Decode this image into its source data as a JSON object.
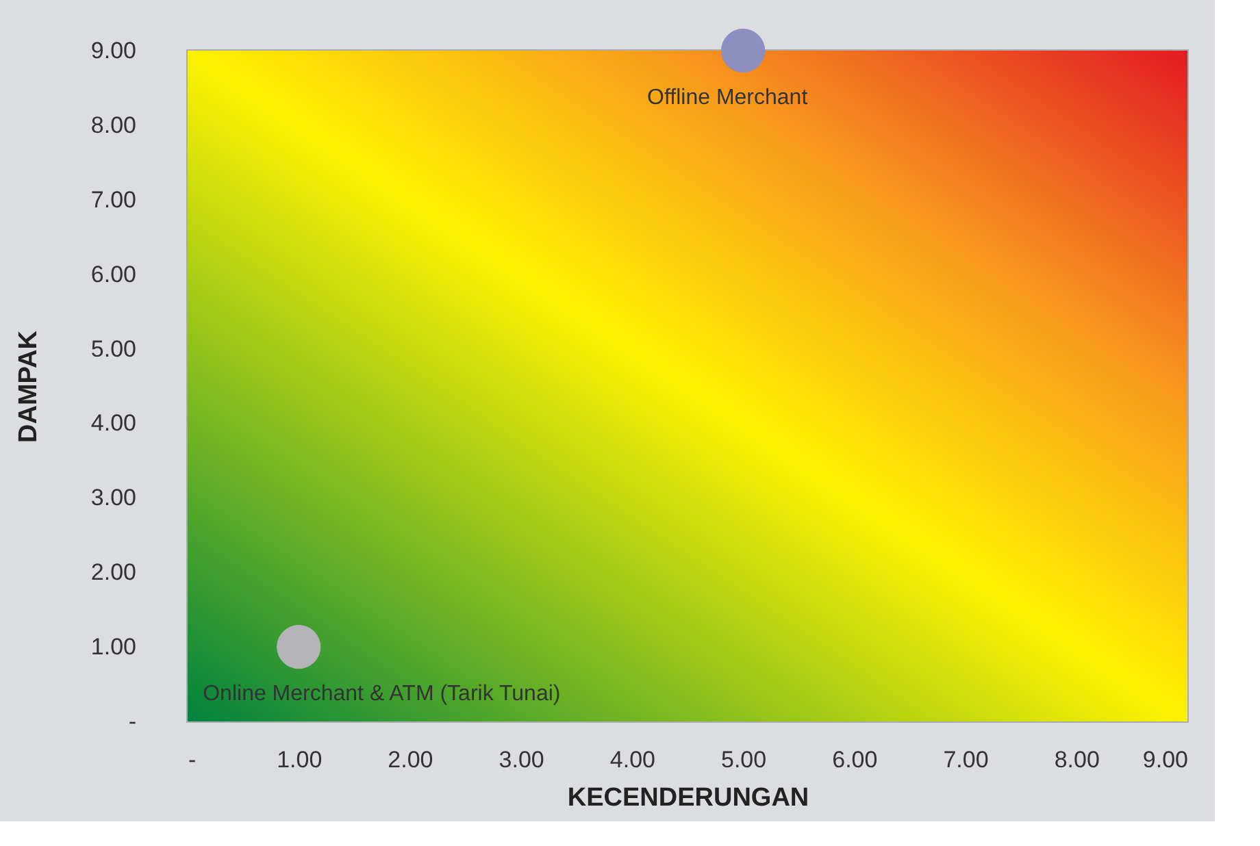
{
  "chart_data": {
    "type": "scatter",
    "xlabel": "KECENDERUNGAN",
    "ylabel": "DAMPAK",
    "series": [
      {
        "color": "#b4b4b8",
        "x": [
          1
        ],
        "values": [
          1
        ]
      },
      {
        "color": "#8c8fc0",
        "x": [
          5
        ],
        "values": [
          9
        ]
      }
    ],
    "annotations": [
      {
        "text": "Online Merchant & ATM (Tarik Tunai)",
        "x": 1,
        "y": 1
      },
      {
        "text": "Offline Merchant",
        "x": 5,
        "y": 9
      }
    ],
    "xlim": [
      0,
      9
    ],
    "ylim": [
      0,
      9
    ],
    "xticks": [
      {
        "value": 0,
        "label": "-"
      },
      {
        "value": 1,
        "label": "1.00"
      },
      {
        "value": 2,
        "label": "2.00"
      },
      {
        "value": 3,
        "label": "3.00"
      },
      {
        "value": 4,
        "label": "4.00"
      },
      {
        "value": 5,
        "label": "5.00"
      },
      {
        "value": 6,
        "label": "6.00"
      },
      {
        "value": 7,
        "label": "7.00"
      },
      {
        "value": 8,
        "label": "8.00"
      },
      {
        "value": 9,
        "label": "9.00"
      }
    ],
    "yticks": [
      {
        "value": 0,
        "label": "-"
      },
      {
        "value": 1,
        "label": "1.00"
      },
      {
        "value": 2,
        "label": "2.00"
      },
      {
        "value": 3,
        "label": "3.00"
      },
      {
        "value": 4,
        "label": "4.00"
      },
      {
        "value": 5,
        "label": "5.00"
      },
      {
        "value": 6,
        "label": "6.00"
      },
      {
        "value": 7,
        "label": "7.00"
      },
      {
        "value": 8,
        "label": "8.00"
      },
      {
        "value": 9,
        "label": "9.00"
      }
    ],
    "grid": false,
    "marker": "circle"
  }
}
